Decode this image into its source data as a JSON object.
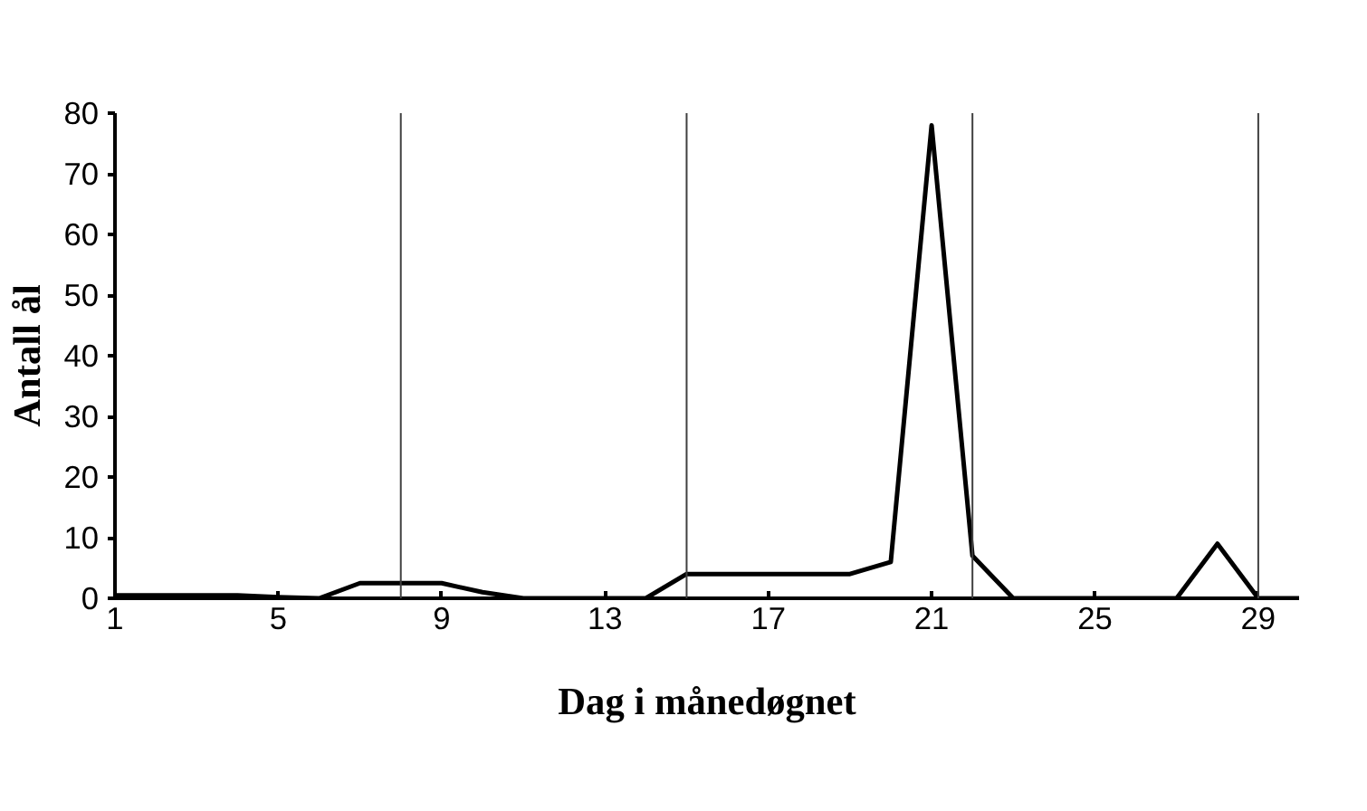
{
  "chart_data": {
    "type": "line",
    "xlabel": "Dag i månedøgnet",
    "ylabel": "Antall ål",
    "x": [
      1,
      2,
      3,
      4,
      5,
      6,
      7,
      8,
      9,
      10,
      11,
      12,
      13,
      14,
      15,
      16,
      17,
      18,
      19,
      20,
      21,
      22,
      23,
      24,
      25,
      26,
      27,
      28,
      29,
      30
    ],
    "series": [
      {
        "color": "#000000",
        "values": [
          0.5,
          0.5,
          0.5,
          0.5,
          0.2,
          0,
          2.5,
          2.5,
          2.5,
          1,
          0,
          0,
          0,
          0,
          4,
          4,
          4,
          4,
          4,
          6,
          78,
          7,
          0,
          0,
          0,
          0,
          0,
          9,
          0,
          0
        ]
      }
    ],
    "xlim": [
      1,
      30
    ],
    "ylim": [
      0,
      80
    ],
    "xticks": [
      1,
      5,
      9,
      13,
      17,
      21,
      25,
      29
    ],
    "yticks": [
      0,
      10,
      20,
      30,
      40,
      50,
      60,
      70,
      80
    ],
    "ref_lines": [
      {
        "axis": "x",
        "value": 8,
        "color": "#404040"
      },
      {
        "axis": "x",
        "value": 15,
        "color": "#404040"
      },
      {
        "axis": "x",
        "value": 22,
        "color": "#404040"
      },
      {
        "axis": "x",
        "value": 29,
        "color": "#404040"
      }
    ],
    "marker": "none"
  }
}
